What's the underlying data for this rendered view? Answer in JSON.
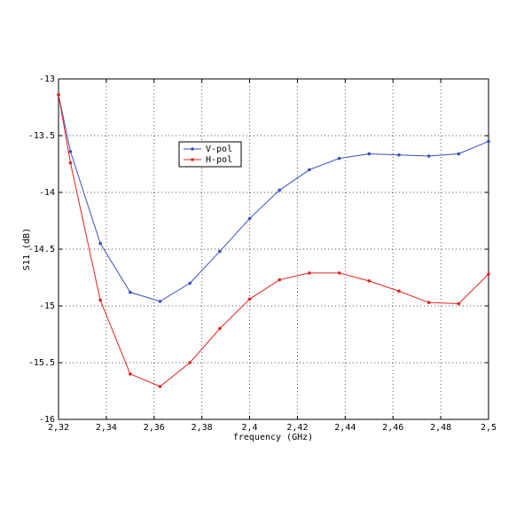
{
  "chart_data": {
    "type": "line",
    "xlabel": "frequency (GHz)",
    "ylabel": "S11 (dB)",
    "x": [
      2.32,
      2.325,
      2.3375,
      2.35,
      2.3625,
      2.375,
      2.3875,
      2.4,
      2.4125,
      2.425,
      2.4375,
      2.45,
      2.4625,
      2.475,
      2.4875,
      2.5
    ],
    "series": [
      {
        "name": "V-pol",
        "color": "#3a4fbf",
        "values": [
          -13.14,
          -13.64,
          -14.45,
          -14.88,
          -14.96,
          -14.8,
          -14.52,
          -14.23,
          -13.98,
          -13.8,
          -13.7,
          -13.66,
          -13.67,
          -13.68,
          -13.66,
          -13.55
        ]
      },
      {
        "name": "H-pol",
        "color": "#e0231d",
        "values": [
          -13.14,
          -13.74,
          -14.95,
          -15.6,
          -15.71,
          -15.5,
          -15.2,
          -14.94,
          -14.77,
          -14.71,
          -14.71,
          -14.78,
          -14.87,
          -14.97,
          -14.98,
          -14.72
        ]
      }
    ],
    "xlim": [
      2.32,
      2.5
    ],
    "xticks": [
      {
        "value": 2.32,
        "label": "2,32"
      },
      {
        "value": 2.34,
        "label": "2,34"
      },
      {
        "value": 2.36,
        "label": "2,36"
      },
      {
        "value": 2.38,
        "label": "2,38"
      },
      {
        "value": 2.4,
        "label": "2,4"
      },
      {
        "value": 2.42,
        "label": "2,42"
      },
      {
        "value": 2.44,
        "label": "2,44"
      },
      {
        "value": 2.46,
        "label": "2,46"
      },
      {
        "value": 2.48,
        "label": "2,48"
      },
      {
        "value": 2.5,
        "label": "2,5"
      }
    ],
    "ylim": [
      -16,
      -13
    ],
    "yticks": [
      -16,
      -15.5,
      -15,
      -14.5,
      -14,
      -13.5,
      -13
    ],
    "grid": true
  }
}
